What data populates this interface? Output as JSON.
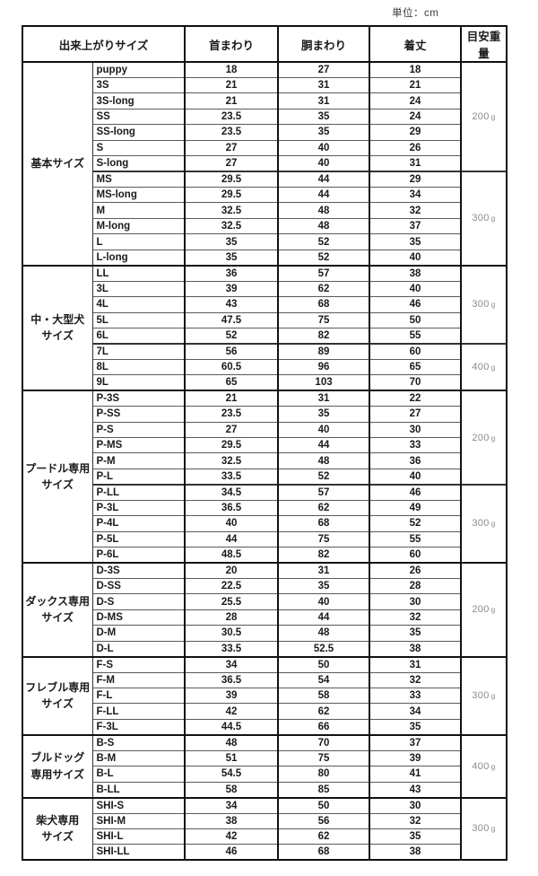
{
  "colors": {
    "background": "#ffffff",
    "text": "#1a1a1a",
    "weight_text": "#8c8c8c",
    "border_dark": "#111111",
    "border_light": "#5a5a5a"
  },
  "chart_data": {
    "type": "table",
    "unit_note": "単位：cm",
    "columns": [
      "出来上がりサイズ",
      "首まわり",
      "胴まわり",
      "着丈",
      "目安重量"
    ],
    "groups": [
      {
        "label": "基本サイズ",
        "label_lines": [
          "基本サイズ"
        ],
        "rows": [
          [
            "puppy",
            18,
            27,
            18
          ],
          [
            "3S",
            21,
            31,
            21
          ],
          [
            "3S-long",
            21,
            31,
            24
          ],
          [
            "SS",
            23.5,
            35,
            24
          ],
          [
            "SS-long",
            23.5,
            35,
            29
          ],
          [
            "S",
            27,
            40,
            26
          ],
          [
            "S-long",
            27,
            40,
            31
          ],
          [
            "MS",
            29.5,
            44,
            29
          ],
          [
            "MS-long",
            29.5,
            44,
            34
          ],
          [
            "M",
            32.5,
            48,
            32
          ],
          [
            "M-long",
            32.5,
            48,
            37
          ],
          [
            "L",
            35,
            52,
            35
          ],
          [
            "L-long",
            35,
            52,
            40
          ]
        ],
        "weight_spans": [
          {
            "label": "200",
            "unit": "g",
            "rows": 7
          },
          {
            "label": "300",
            "unit": "g",
            "rows": 6
          }
        ]
      },
      {
        "label": "中・大型犬サイズ",
        "label_lines": [
          "中・大型犬",
          "サイズ"
        ],
        "rows": [
          [
            "LL",
            36,
            57,
            38
          ],
          [
            "3L",
            39,
            62,
            40
          ],
          [
            "4L",
            43,
            68,
            46
          ],
          [
            "5L",
            47.5,
            75,
            50
          ],
          [
            "6L",
            52,
            82,
            55
          ],
          [
            "7L",
            56,
            89,
            60
          ],
          [
            "8L",
            60.5,
            96,
            65
          ],
          [
            "9L",
            65,
            103,
            70
          ]
        ],
        "weight_spans": [
          {
            "label": "300",
            "unit": "g",
            "rows": 5
          },
          {
            "label": "400",
            "unit": "g",
            "rows": 3
          }
        ]
      },
      {
        "label": "プードル専用サイズ",
        "label_lines": [
          "プードル専用",
          "サイズ"
        ],
        "rows": [
          [
            "P-3S",
            21,
            31,
            22
          ],
          [
            "P-SS",
            23.5,
            35,
            27
          ],
          [
            "P-S",
            27,
            40,
            30
          ],
          [
            "P-MS",
            29.5,
            44,
            33
          ],
          [
            "P-M",
            32.5,
            48,
            36
          ],
          [
            "P-L",
            33.5,
            52,
            40
          ],
          [
            "P-LL",
            34.5,
            57,
            46
          ],
          [
            "P-3L",
            36.5,
            62,
            49
          ],
          [
            "P-4L",
            40,
            68,
            52
          ],
          [
            "P-5L",
            44,
            75,
            55
          ],
          [
            "P-6L",
            48.5,
            82,
            60
          ]
        ],
        "weight_spans": [
          {
            "label": "200",
            "unit": "g",
            "rows": 6
          },
          {
            "label": "300",
            "unit": "g",
            "rows": 5
          }
        ]
      },
      {
        "label": "ダックス専用サイズ",
        "label_lines": [
          "ダックス専用",
          "サイズ"
        ],
        "rows": [
          [
            "D-3S",
            20,
            31,
            26
          ],
          [
            "D-SS",
            22.5,
            35,
            28
          ],
          [
            "D-S",
            25.5,
            40,
            30
          ],
          [
            "D-MS",
            28,
            44,
            32
          ],
          [
            "D-M",
            30.5,
            48,
            35
          ],
          [
            "D-L",
            33.5,
            52.5,
            38
          ]
        ],
        "weight_spans": [
          {
            "label": "200",
            "unit": "g",
            "rows": 6
          }
        ]
      },
      {
        "label": "フレブル専用サイズ",
        "label_lines": [
          "フレブル専用",
          "サイズ"
        ],
        "rows": [
          [
            "F-S",
            34,
            50,
            31
          ],
          [
            "F-M",
            36.5,
            54,
            32
          ],
          [
            "F-L",
            39,
            58,
            33
          ],
          [
            "F-LL",
            42,
            62,
            34
          ],
          [
            "F-3L",
            44.5,
            66,
            35
          ]
        ],
        "weight_spans": [
          {
            "label": "300",
            "unit": "g",
            "rows": 5
          }
        ]
      },
      {
        "label": "ブルドッグ専用サイズ",
        "label_lines": [
          "ブルドッグ",
          "専用サイズ"
        ],
        "rows": [
          [
            "B-S",
            48,
            70,
            37
          ],
          [
            "B-M",
            51,
            75,
            39
          ],
          [
            "B-L",
            54.5,
            80,
            41
          ],
          [
            "B-LL",
            58,
            85,
            43
          ]
        ],
        "weight_spans": [
          {
            "label": "400",
            "unit": "g",
            "rows": 4
          }
        ]
      },
      {
        "label": "柴犬専用サイズ",
        "label_lines": [
          "柴犬専用",
          "サイズ"
        ],
        "rows": [
          [
            "SHI-S",
            34,
            50,
            30
          ],
          [
            "SHI-M",
            38,
            56,
            32
          ],
          [
            "SHI-L",
            42,
            62,
            35
          ],
          [
            "SHI-LL",
            46,
            68,
            38
          ]
        ],
        "weight_spans": [
          {
            "label": "300",
            "unit": "g",
            "rows": 4
          }
        ]
      }
    ]
  }
}
